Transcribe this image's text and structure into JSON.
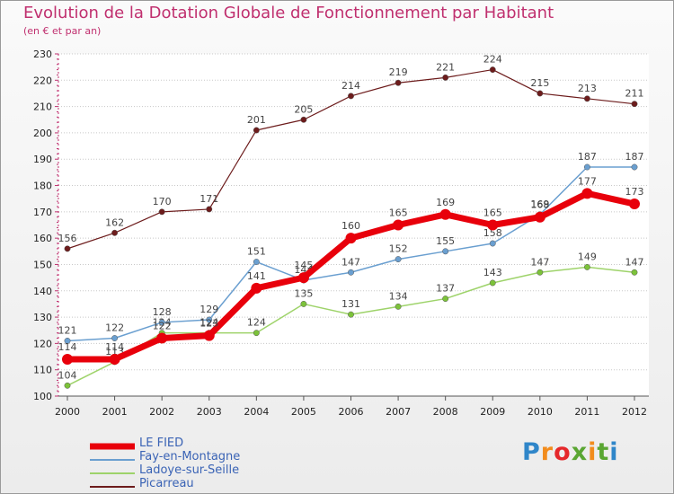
{
  "title": "Evolution de la Dotation Globale de Fonctionnement par Habitant",
  "subtitle": "(en € et par an)",
  "brand": {
    "text": "Proxiti",
    "letters": [
      "P",
      "r",
      "o",
      "x",
      "i",
      "t",
      "i"
    ],
    "colors": [
      "#2f86c9",
      "#f28c1d",
      "#e5282b",
      "#5aa632",
      "#f28c1d",
      "#5aa632",
      "#2f86c9"
    ]
  },
  "chart_data": {
    "type": "line",
    "title": "Evolution de la Dotation Globale de Fonctionnement par Habitant",
    "subtitle": "(en € et par an)",
    "xlabel": "",
    "ylabel": "",
    "x": [
      "2000",
      "2001",
      "2002",
      "2003",
      "2004",
      "2005",
      "2006",
      "2007",
      "2008",
      "2009",
      "2010",
      "2011",
      "2012"
    ],
    "ylim": [
      100,
      230
    ],
    "yticks": [
      100,
      110,
      120,
      130,
      140,
      150,
      160,
      170,
      180,
      190,
      200,
      210,
      220,
      230
    ],
    "grid": "horizontal dotted",
    "legend_position": "bottom-left",
    "series": [
      {
        "name": "LE FIED",
        "color": "#e8000b",
        "width": 7,
        "marker": 6,
        "values": [
          114,
          114,
          122,
          123,
          141,
          145,
          160,
          165,
          169,
          165,
          168,
          177,
          173
        ]
      },
      {
        "name": "Fay-en-Montagne",
        "color": "#6a9fd0",
        "width": 1.5,
        "marker": 3.2,
        "values": [
          121,
          122,
          128,
          129,
          151,
          144,
          147,
          152,
          155,
          158,
          169,
          187,
          187
        ]
      },
      {
        "name": "Ladoye-sur-Seille",
        "color": "#9ed36a",
        "width": 1.5,
        "marker": 3.2,
        "values": [
          104,
          113,
          124,
          124,
          124,
          135,
          131,
          134,
          137,
          143,
          147,
          149,
          147
        ]
      },
      {
        "name": "Picarreau",
        "color": "#6d1c1c",
        "width": 1.2,
        "marker": 3.2,
        "values": [
          156,
          162,
          170,
          171,
          201,
          205,
          214,
          219,
          221,
          224,
          215,
          213,
          211
        ]
      }
    ]
  }
}
